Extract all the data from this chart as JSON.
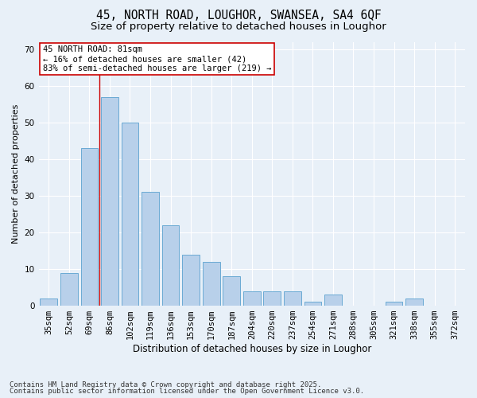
{
  "title1": "45, NORTH ROAD, LOUGHOR, SWANSEA, SA4 6QF",
  "title2": "Size of property relative to detached houses in Loughor",
  "xlabel": "Distribution of detached houses by size in Loughor",
  "ylabel": "Number of detached properties",
  "categories": [
    "35sqm",
    "52sqm",
    "69sqm",
    "86sqm",
    "102sqm",
    "119sqm",
    "136sqm",
    "153sqm",
    "170sqm",
    "187sqm",
    "204sqm",
    "220sqm",
    "237sqm",
    "254sqm",
    "271sqm",
    "288sqm",
    "305sqm",
    "321sqm",
    "338sqm",
    "355sqm",
    "372sqm"
  ],
  "values": [
    2,
    9,
    43,
    57,
    50,
    31,
    22,
    14,
    12,
    8,
    4,
    4,
    4,
    1,
    3,
    0,
    0,
    1,
    2,
    0,
    0
  ],
  "bar_color": "#b8d0ea",
  "bar_edge_color": "#6aaad4",
  "background_color": "#e8f0f8",
  "grid_color": "#ffffff",
  "red_line_x": 2.5,
  "annotation_text": "45 NORTH ROAD: 81sqm\n← 16% of detached houses are smaller (42)\n83% of semi-detached houses are larger (219) →",
  "annotation_box_color": "#ffffff",
  "annotation_box_edge": "#cc0000",
  "red_line_color": "#cc0000",
  "ylim": [
    0,
    72
  ],
  "yticks": [
    0,
    10,
    20,
    30,
    40,
    50,
    60,
    70
  ],
  "footer_line1": "Contains HM Land Registry data © Crown copyright and database right 2025.",
  "footer_line2": "Contains public sector information licensed under the Open Government Licence v3.0.",
  "title1_fontsize": 10.5,
  "title2_fontsize": 9.5,
  "xlabel_fontsize": 8.5,
  "ylabel_fontsize": 8,
  "tick_fontsize": 7.5,
  "annot_fontsize": 7.5,
  "footer_fontsize": 6.5
}
